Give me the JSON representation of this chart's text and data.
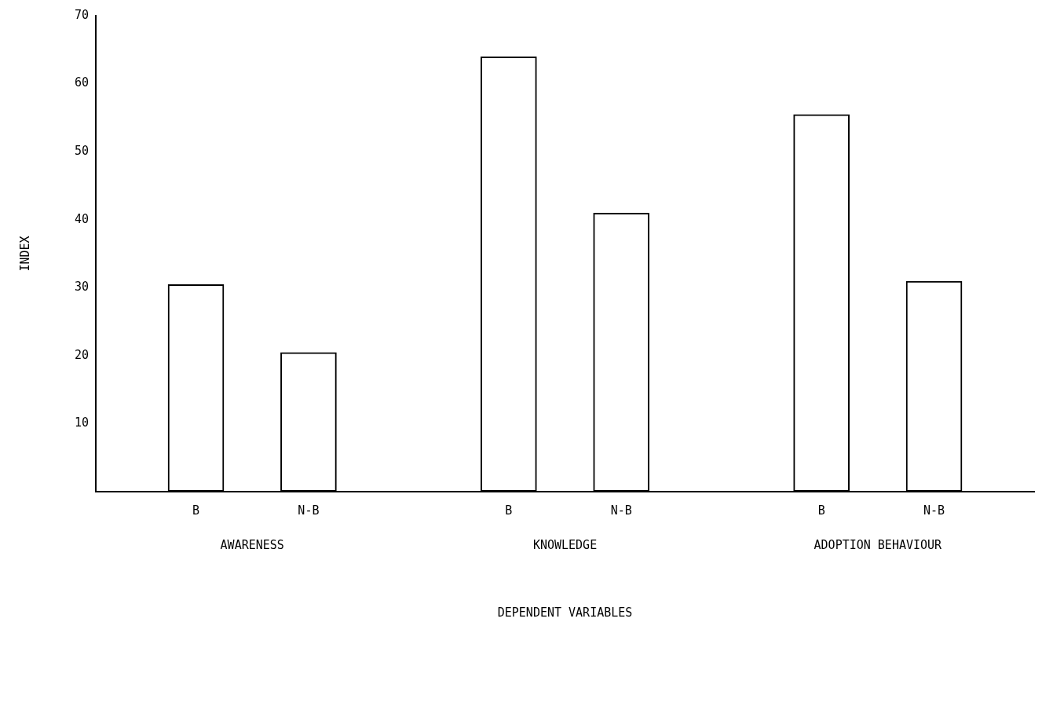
{
  "chart_data": {
    "type": "bar",
    "xlabel": "DEPENDENT VARIABLES",
    "ylabel": "INDEX",
    "categories": [
      "AWARENESS",
      "KNOWLEDGE",
      "ADOPTION BEHAVIOUR"
    ],
    "series": [
      {
        "name": "B",
        "color": "#000000",
        "values": [
          30.5,
          64,
          55.5
        ]
      },
      {
        "name": "N-B",
        "color": "#000000",
        "values": [
          20.5,
          41,
          31
        ]
      }
    ],
    "ylim": [
      0,
      70
    ],
    "yticks": [
      10,
      20,
      30,
      40,
      50,
      60,
      70
    ],
    "grid": false,
    "legend": false
  }
}
